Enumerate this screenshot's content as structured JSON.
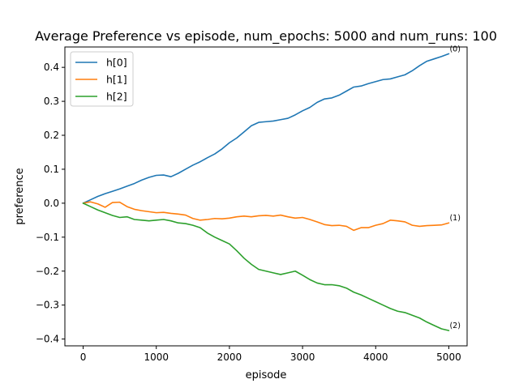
{
  "chart_data": {
    "type": "line",
    "title": "Average Preference vs episode, num_epochs: 5000 and num_runs: 100",
    "xlabel": "episode",
    "ylabel": "preference",
    "xlim": [
      -250,
      5250
    ],
    "ylim": [
      -0.42,
      0.46
    ],
    "xticks": [
      0,
      1000,
      2000,
      3000,
      4000,
      5000
    ],
    "yticks": [
      -0.4,
      -0.3,
      -0.2,
      -0.1,
      0.0,
      0.1,
      0.2,
      0.3,
      0.4
    ],
    "xtick_labels": [
      "0",
      "1000",
      "2000",
      "3000",
      "4000",
      "5000"
    ],
    "ytick_labels": [
      "−0.4",
      "−0.3",
      "−0.2",
      "−0.1",
      "0.0",
      "0.1",
      "0.2",
      "0.3",
      "0.4"
    ],
    "grid": false,
    "legend_position": "upper-left",
    "series": [
      {
        "name": "h[0]",
        "color": "#1f77b4",
        "end_label": "(0)",
        "x": [
          0,
          100,
          200,
          300,
          400,
          500,
          600,
          700,
          800,
          900,
          1000,
          1100,
          1200,
          1300,
          1400,
          1500,
          1600,
          1700,
          1800,
          1900,
          2000,
          2100,
          2200,
          2300,
          2400,
          2500,
          2600,
          2700,
          2800,
          2900,
          3000,
          3100,
          3200,
          3300,
          3400,
          3500,
          3600,
          3700,
          3800,
          3900,
          4000,
          4100,
          4200,
          4300,
          4400,
          4500,
          4600,
          4700,
          4800,
          4900,
          5000
        ],
        "values": [
          0.0,
          0.01,
          0.02,
          0.028,
          0.035,
          0.042,
          0.05,
          0.058,
          0.068,
          0.076,
          0.082,
          0.083,
          0.078,
          0.088,
          0.1,
          0.112,
          0.122,
          0.134,
          0.145,
          0.16,
          0.178,
          0.192,
          0.21,
          0.228,
          0.238,
          0.24,
          0.242,
          0.246,
          0.25,
          0.26,
          0.272,
          0.282,
          0.297,
          0.307,
          0.31,
          0.318,
          0.33,
          0.342,
          0.345,
          0.352,
          0.358,
          0.364,
          0.366,
          0.372,
          0.378,
          0.39,
          0.405,
          0.418,
          0.425,
          0.432,
          0.44
        ]
      },
      {
        "name": "h[1]",
        "color": "#ff7f0e",
        "end_label": "(1)",
        "x": [
          0,
          100,
          200,
          300,
          400,
          500,
          600,
          700,
          800,
          900,
          1000,
          1100,
          1200,
          1300,
          1400,
          1500,
          1600,
          1700,
          1800,
          1900,
          2000,
          2100,
          2200,
          2300,
          2400,
          2500,
          2600,
          2700,
          2800,
          2900,
          3000,
          3100,
          3200,
          3300,
          3400,
          3500,
          3600,
          3700,
          3800,
          3900,
          4000,
          4100,
          4200,
          4300,
          4400,
          4500,
          4600,
          4700,
          4800,
          4900,
          5000
        ],
        "values": [
          0.0,
          0.004,
          -0.002,
          -0.012,
          0.002,
          0.003,
          -0.01,
          -0.018,
          -0.022,
          -0.025,
          -0.028,
          -0.027,
          -0.03,
          -0.032,
          -0.035,
          -0.045,
          -0.05,
          -0.048,
          -0.045,
          -0.046,
          -0.044,
          -0.04,
          -0.038,
          -0.04,
          -0.037,
          -0.036,
          -0.038,
          -0.035,
          -0.04,
          -0.044,
          -0.042,
          -0.048,
          -0.055,
          -0.063,
          -0.066,
          -0.065,
          -0.068,
          -0.08,
          -0.072,
          -0.072,
          -0.065,
          -0.06,
          -0.05,
          -0.052,
          -0.055,
          -0.065,
          -0.068,
          -0.066,
          -0.065,
          -0.064,
          -0.058
        ]
      },
      {
        "name": "h[2]",
        "color": "#2ca02c",
        "end_label": "(2)",
        "x": [
          0,
          100,
          200,
          300,
          400,
          500,
          600,
          700,
          800,
          900,
          1000,
          1100,
          1200,
          1300,
          1400,
          1500,
          1600,
          1700,
          1800,
          1900,
          2000,
          2100,
          2200,
          2300,
          2400,
          2500,
          2600,
          2700,
          2800,
          2900,
          3000,
          3100,
          3200,
          3300,
          3400,
          3500,
          3600,
          3700,
          3800,
          3900,
          4000,
          4100,
          4200,
          4300,
          4400,
          4500,
          4600,
          4700,
          4800,
          4900,
          5000
        ],
        "values": [
          0.0,
          -0.01,
          -0.02,
          -0.028,
          -0.036,
          -0.042,
          -0.04,
          -0.048,
          -0.05,
          -0.052,
          -0.05,
          -0.048,
          -0.052,
          -0.058,
          -0.06,
          -0.065,
          -0.072,
          -0.088,
          -0.1,
          -0.11,
          -0.12,
          -0.14,
          -0.162,
          -0.18,
          -0.195,
          -0.2,
          -0.205,
          -0.21,
          -0.205,
          -0.2,
          -0.212,
          -0.225,
          -0.235,
          -0.24,
          -0.24,
          -0.243,
          -0.25,
          -0.262,
          -0.27,
          -0.28,
          -0.29,
          -0.3,
          -0.31,
          -0.318,
          -0.322,
          -0.33,
          -0.338,
          -0.35,
          -0.36,
          -0.37,
          -0.375
        ]
      }
    ]
  }
}
